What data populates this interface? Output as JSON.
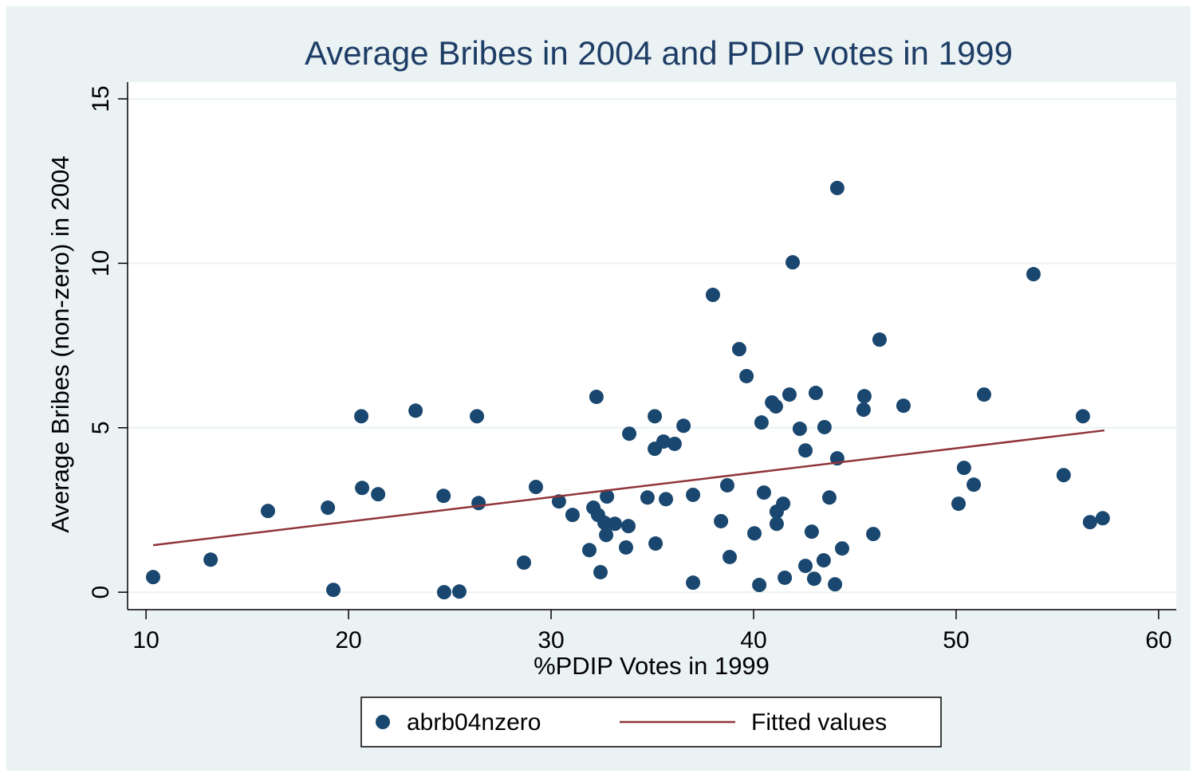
{
  "chart_data": {
    "type": "scatter",
    "title": "Average Bribes in 2004 and PDIP votes in 1999",
    "xlabel": "%PDIP Votes in 1999",
    "ylabel": "Average Bribes (non-zero) in 2004",
    "xlim": [
      9.09,
      60.87
    ],
    "ylim": [
      -0.53,
      15.51
    ],
    "xticks": [
      10,
      20,
      30,
      40,
      50,
      60
    ],
    "yticks": [
      0,
      5,
      10,
      15
    ],
    "grid": true,
    "legend": "bottom",
    "series": [
      {
        "name": "abrb04nzero",
        "type": "scatter",
        "color": "#1a476f",
        "x": [
          10.35,
          13.19,
          16.02,
          18.98,
          19.25,
          20.63,
          20.67,
          21.46,
          23.31,
          24.69,
          24.72,
          25.47,
          26.34,
          26.42,
          28.66,
          29.25,
          30.39,
          31.06,
          31.89,
          32.09,
          32.24,
          32.32,
          32.44,
          32.64,
          32.72,
          32.76,
          33.15,
          33.7,
          33.82,
          33.86,
          34.76,
          35.12,
          35.12,
          35.16,
          35.55,
          35.67,
          36.1,
          36.54,
          37.01,
          37.01,
          37.99,
          38.39,
          38.7,
          38.82,
          39.29,
          39.65,
          40.04,
          40.28,
          40.39,
          40.51,
          40.91,
          41.1,
          41.14,
          41.14,
          41.46,
          41.54,
          41.77,
          41.93,
          42.28,
          42.56,
          42.56,
          42.87,
          42.99,
          43.07,
          43.46,
          43.5,
          43.74,
          44.02,
          44.13,
          44.13,
          44.37,
          45.43,
          45.47,
          45.91,
          46.22,
          47.4,
          50.12,
          50.39,
          50.87,
          51.38,
          53.82,
          55.31,
          56.26,
          56.61,
          57.24
        ],
        "values": [
          0.46,
          0.99,
          2.47,
          2.57,
          0.07,
          5.35,
          3.17,
          2.98,
          5.52,
          2.93,
          0,
          0.02,
          5.35,
          2.71,
          0.9,
          3.2,
          2.76,
          2.35,
          1.28,
          2.57,
          5.94,
          2.35,
          0.61,
          2.11,
          1.74,
          2.91,
          2.08,
          1.36,
          2.01,
          4.82,
          2.88,
          5.35,
          4.36,
          1.48,
          4.58,
          2.83,
          4.51,
          5.06,
          2.96,
          0.29,
          9.04,
          2.16,
          3.25,
          1.07,
          7.39,
          6.57,
          1.79,
          0.22,
          5.16,
          3.03,
          5.77,
          5.65,
          2.45,
          2.08,
          2.69,
          0.44,
          6.01,
          10.03,
          4.97,
          4.31,
          0.8,
          1.84,
          0.41,
          6.06,
          0.97,
          5.02,
          2.88,
          0.24,
          4.07,
          12.29,
          1.33,
          5.55,
          5.96,
          1.77,
          7.68,
          5.67,
          2.69,
          3.78,
          3.27,
          6.01,
          9.67,
          3.56,
          5.35,
          2.13,
          2.25
        ]
      },
      {
        "name": "Fitted values",
        "type": "line",
        "color": "#90353b",
        "x": [
          10.35,
          57.32
        ],
        "values": [
          1.43,
          4.92
        ]
      }
    ]
  }
}
